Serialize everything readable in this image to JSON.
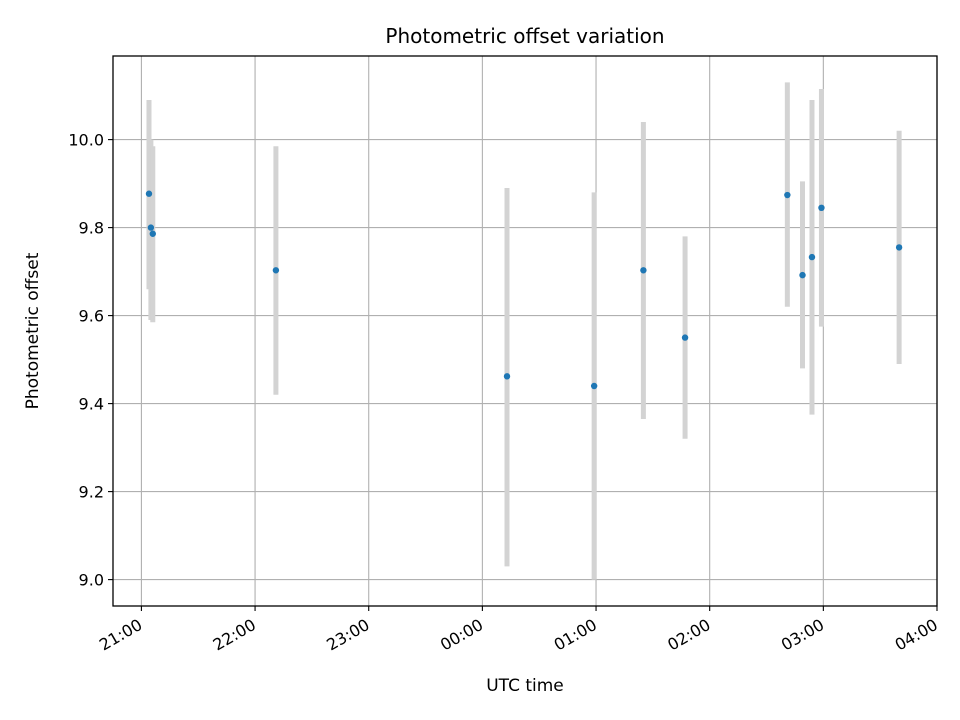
{
  "chart_data": {
    "type": "scatter",
    "title": "Photometric offset variation",
    "xlabel": "UTC time",
    "ylabel": "Photometric offset",
    "x_axis": "time",
    "xlim": [
      "20:45",
      "04:00"
    ],
    "xticks": [
      "21:00",
      "22:00",
      "23:00",
      "00:00",
      "01:00",
      "02:00",
      "03:00",
      "04:00"
    ],
    "ylim": [
      8.94,
      10.19
    ],
    "yticks": [
      "9.0",
      "9.2",
      "9.4",
      "9.6",
      "9.8",
      "10.0"
    ],
    "grid": true,
    "colors": {
      "point": "#1f77b4",
      "errorbar": "#d3d3d3",
      "grid": "#b0b0b0"
    },
    "points": [
      {
        "x": "21:04",
        "y": 9.877,
        "ylow": 9.66,
        "yhigh": 10.09
      },
      {
        "x": "21:05",
        "y": 9.8,
        "ylow": 9.59,
        "yhigh": 10.0
      },
      {
        "x": "21:06",
        "y": 9.786,
        "ylow": 9.585,
        "yhigh": 9.985
      },
      {
        "x": "22:11",
        "y": 9.703,
        "ylow": 9.42,
        "yhigh": 9.985
      },
      {
        "x": "00:13",
        "y": 9.462,
        "ylow": 9.03,
        "yhigh": 9.89
      },
      {
        "x": "00:59",
        "y": 9.44,
        "ylow": 9.0,
        "yhigh": 9.88
      },
      {
        "x": "01:25",
        "y": 9.703,
        "ylow": 9.365,
        "yhigh": 10.04
      },
      {
        "x": "01:47",
        "y": 9.55,
        "ylow": 9.32,
        "yhigh": 9.78
      },
      {
        "x": "02:41",
        "y": 9.874,
        "ylow": 9.62,
        "yhigh": 10.13
      },
      {
        "x": "02:49",
        "y": 9.692,
        "ylow": 9.48,
        "yhigh": 9.905
      },
      {
        "x": "02:54",
        "y": 9.733,
        "ylow": 9.375,
        "yhigh": 10.09
      },
      {
        "x": "02:59",
        "y": 9.845,
        "ylow": 9.575,
        "yhigh": 10.115
      },
      {
        "x": "03:40",
        "y": 9.755,
        "ylow": 9.49,
        "yhigh": 10.02
      }
    ]
  }
}
